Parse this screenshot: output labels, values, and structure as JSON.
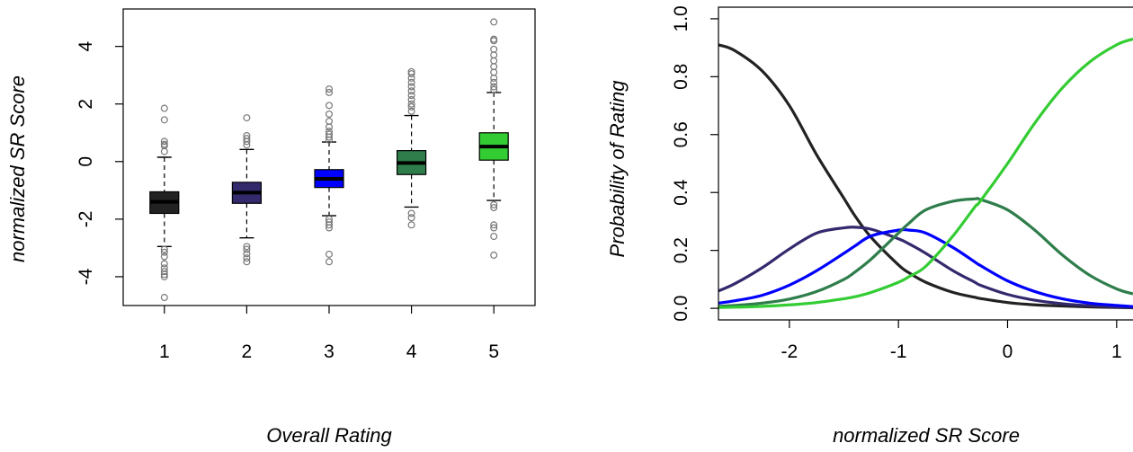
{
  "chart_data": [
    {
      "type": "box",
      "title": "",
      "xlabel": "Overall Rating",
      "ylabel": "normalized SR Score",
      "xlim": [
        0.5,
        5.5
      ],
      "ylim": [
        -5.0,
        5.3
      ],
      "categories": [
        "1",
        "2",
        "3",
        "4",
        "5"
      ],
      "yticks": [
        "-4",
        "-2",
        "0",
        "2",
        "4"
      ],
      "grid": false,
      "colors": [
        "#222222",
        "#332a6e",
        "#0000ff",
        "#2e7d4b",
        "#33cc33"
      ],
      "boxes": [
        {
          "category": "1",
          "whisker_low": -2.95,
          "q1": -1.8,
          "median": -1.4,
          "q3": -1.05,
          "whisker_high": 0.15,
          "outliers": [
            -4.72,
            -4.0,
            -3.92,
            -3.82,
            -3.7,
            -3.55,
            -3.3,
            -3.15,
            -3.05,
            0.35,
            0.55,
            0.6,
            0.7,
            1.45,
            1.85
          ]
        },
        {
          "category": "2",
          "whisker_low": -2.65,
          "q1": -1.45,
          "median": -1.08,
          "q3": -0.72,
          "whisker_high": 0.42,
          "outliers": [
            -3.48,
            -3.35,
            -3.2,
            -3.05,
            -2.95,
            0.58,
            0.7,
            0.8,
            0.9,
            1.52
          ]
        },
        {
          "category": "3",
          "whisker_low": -1.88,
          "q1": -0.9,
          "median": -0.6,
          "q3": -0.28,
          "whisker_high": 0.68,
          "outliers": [
            -3.48,
            -3.22,
            -2.3,
            -2.2,
            -2.1,
            -2.0,
            0.75,
            0.85,
            0.95,
            1.05,
            1.2,
            1.4,
            1.65,
            1.95,
            2.4,
            2.52
          ]
        },
        {
          "category": "4",
          "whisker_low": -1.58,
          "q1": -0.45,
          "median": -0.05,
          "q3": 0.38,
          "whisker_high": 1.6,
          "outliers": [
            -2.2,
            -1.95,
            -1.8,
            1.75,
            1.9,
            2.0,
            2.15,
            2.3,
            2.45,
            2.6,
            2.75,
            2.9,
            3.05,
            3.12
          ]
        },
        {
          "category": "5",
          "whisker_low": -1.35,
          "q1": 0.05,
          "median": 0.52,
          "q3": 1.0,
          "whisker_high": 2.4,
          "outliers": [
            -3.25,
            -2.6,
            -2.3,
            -2.2,
            -1.6,
            -1.5,
            2.5,
            2.6,
            2.75,
            2.9,
            3.1,
            3.3,
            3.5,
            3.7,
            3.9,
            4.2,
            4.25,
            4.85
          ]
        }
      ]
    },
    {
      "type": "line",
      "title": "",
      "xlabel": "normalized SR Score",
      "ylabel": "Probability of Rating",
      "xlim": [
        -2.65,
        1.15
      ],
      "ylim": [
        -0.04,
        1.04
      ],
      "xticks": [
        "-2",
        "-1",
        "0",
        "1"
      ],
      "yticks": [
        "0.0",
        "0.2",
        "0.4",
        "0.6",
        "0.8",
        "1.0"
      ],
      "grid": false,
      "x": [
        -2.65,
        -2.5,
        -2.25,
        -2.0,
        -1.75,
        -1.5,
        -1.4,
        -1.25,
        -1.0,
        -0.9,
        -0.75,
        -0.5,
        -0.3,
        -0.25,
        0.0,
        0.25,
        0.5,
        0.75,
        1.0,
        1.15
      ],
      "series": [
        {
          "color": "#222222",
          "values": [
            0.91,
            0.89,
            0.82,
            0.7,
            0.53,
            0.38,
            0.32,
            0.245,
            0.15,
            0.122,
            0.09,
            0.055,
            0.038,
            0.034,
            0.02,
            0.012,
            0.008,
            0.005,
            0.003,
            0.002
          ]
        },
        {
          "color": "#332a6e",
          "values": [
            0.06,
            0.085,
            0.14,
            0.205,
            0.26,
            0.278,
            0.28,
            0.273,
            0.24,
            0.222,
            0.19,
            0.13,
            0.09,
            0.08,
            0.048,
            0.028,
            0.016,
            0.009,
            0.005,
            0.003
          ]
        },
        {
          "color": "#0000ff",
          "values": [
            0.018,
            0.026,
            0.045,
            0.08,
            0.13,
            0.19,
            0.215,
            0.25,
            0.27,
            0.27,
            0.26,
            0.21,
            0.16,
            0.148,
            0.095,
            0.058,
            0.033,
            0.018,
            0.01,
            0.006
          ]
        },
        {
          "color": "#2e7d4b",
          "values": [
            0.007,
            0.01,
            0.018,
            0.032,
            0.058,
            0.1,
            0.125,
            0.17,
            0.26,
            0.295,
            0.34,
            0.37,
            0.378,
            0.376,
            0.34,
            0.27,
            0.185,
            0.115,
            0.067,
            0.05
          ]
        },
        {
          "color": "#33cc33",
          "values": [
            0.003,
            0.004,
            0.007,
            0.012,
            0.02,
            0.033,
            0.04,
            0.055,
            0.09,
            0.11,
            0.145,
            0.25,
            0.35,
            0.37,
            0.5,
            0.64,
            0.76,
            0.85,
            0.91,
            0.93
          ]
        }
      ]
    }
  ]
}
